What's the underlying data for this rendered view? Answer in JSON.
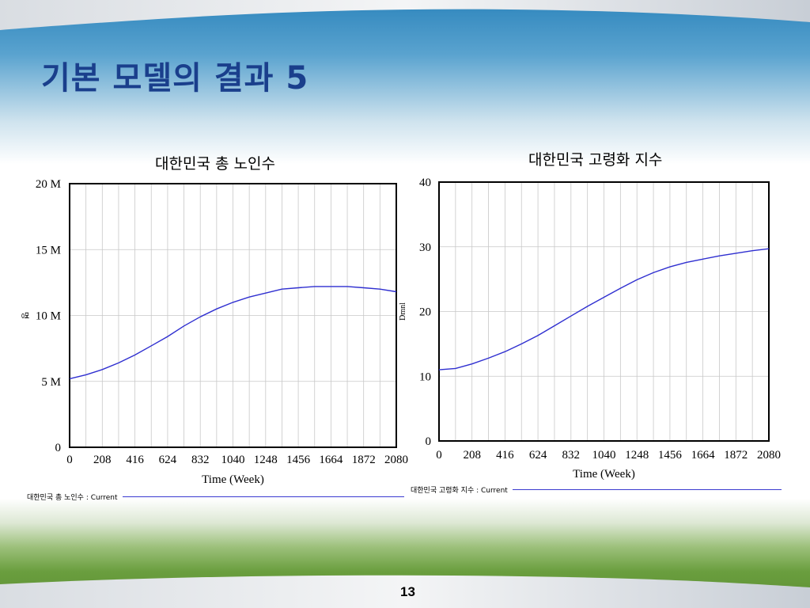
{
  "slide": {
    "title": "기본 모델의 결과 5",
    "page_number": "13"
  },
  "chart_data": [
    {
      "type": "line",
      "title": "대한민국 총 노인수",
      "xlabel": "Time (Week)",
      "ylabel": "명",
      "x_ticks": [
        "0",
        "208",
        "416",
        "624",
        "832",
        "1040",
        "1248",
        "1456",
        "1664",
        "1872",
        "2080"
      ],
      "y_ticks": [
        "0",
        "5 M",
        "10 M",
        "15 M",
        "20 M"
      ],
      "xlim": [
        0,
        2080
      ],
      "ylim": [
        0,
        20000000
      ],
      "legend": "대한민국 총 노인수 : Current",
      "series": [
        {
          "name": "Current",
          "x": [
            0,
            104,
            208,
            312,
            416,
            520,
            624,
            728,
            832,
            936,
            1040,
            1144,
            1248,
            1352,
            1456,
            1560,
            1664,
            1768,
            1872,
            1976,
            2080
          ],
          "y": [
            5200000,
            5500000,
            5900000,
            6400000,
            7000000,
            7700000,
            8400000,
            9200000,
            9900000,
            10500000,
            11000000,
            11400000,
            11700000,
            12000000,
            12100000,
            12200000,
            12200000,
            12200000,
            12100000,
            12000000,
            11800000
          ]
        }
      ]
    },
    {
      "type": "line",
      "title": "대한민국 고령화 지수",
      "xlabel": "Time (Week)",
      "ylabel": "Dmnl",
      "x_ticks": [
        "0",
        "208",
        "416",
        "624",
        "832",
        "1040",
        "1248",
        "1456",
        "1664",
        "1872",
        "2080"
      ],
      "y_ticks": [
        "0",
        "10",
        "20",
        "30",
        "40"
      ],
      "xlim": [
        0,
        2080
      ],
      "ylim": [
        0,
        40
      ],
      "legend": "대한민국 고령화 지수 : Current",
      "series": [
        {
          "name": "Current",
          "x": [
            0,
            104,
            208,
            312,
            416,
            520,
            624,
            728,
            832,
            936,
            1040,
            1144,
            1248,
            1352,
            1456,
            1560,
            1664,
            1768,
            1872,
            1976,
            2080
          ],
          "y": [
            11.0,
            11.2,
            11.9,
            12.8,
            13.8,
            15.0,
            16.3,
            17.8,
            19.3,
            20.8,
            22.2,
            23.6,
            24.9,
            26.0,
            26.9,
            27.6,
            28.1,
            28.6,
            29.0,
            29.4,
            29.7
          ]
        }
      ]
    }
  ]
}
